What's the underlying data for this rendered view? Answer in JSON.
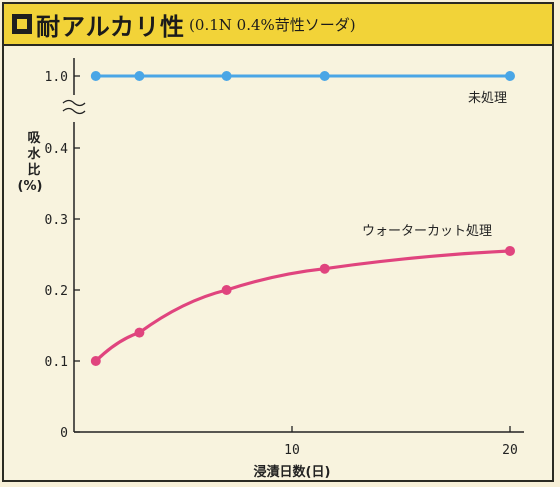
{
  "header": {
    "title": "耐アルカリ性",
    "subtitle": "(0.1N 0.4%苛性ソーダ)",
    "icon": "square-bullet-icon"
  },
  "chart_data": {
    "type": "line",
    "title": "耐アルカリ性",
    "subtitle": "(0.1N 0.4%苛性ソーダ)",
    "xlabel": "浸漬日数(日)",
    "ylabel": [
      "吸",
      "水",
      "比",
      "(%)"
    ],
    "xlim": [
      0,
      20
    ],
    "x_ticks": [
      "10",
      "20"
    ],
    "y_ticks": [
      "0",
      "0.1",
      "0.2",
      "0.3",
      "0.4",
      "1.0"
    ],
    "y_axis_break": "between 0.4 and 1.0",
    "grid": false,
    "series": [
      {
        "name": "未処理",
        "color": "#4aa6e6",
        "x": [
          1,
          3,
          7,
          11.5,
          20
        ],
        "y": [
          1.0,
          1.0,
          1.0,
          1.0,
          1.0
        ]
      },
      {
        "name": "ウォーターカット処理",
        "color": "#e0447e",
        "x": [
          1,
          3,
          7,
          11.5,
          20
        ],
        "y": [
          0.1,
          0.14,
          0.2,
          0.23,
          0.255
        ]
      }
    ]
  }
}
